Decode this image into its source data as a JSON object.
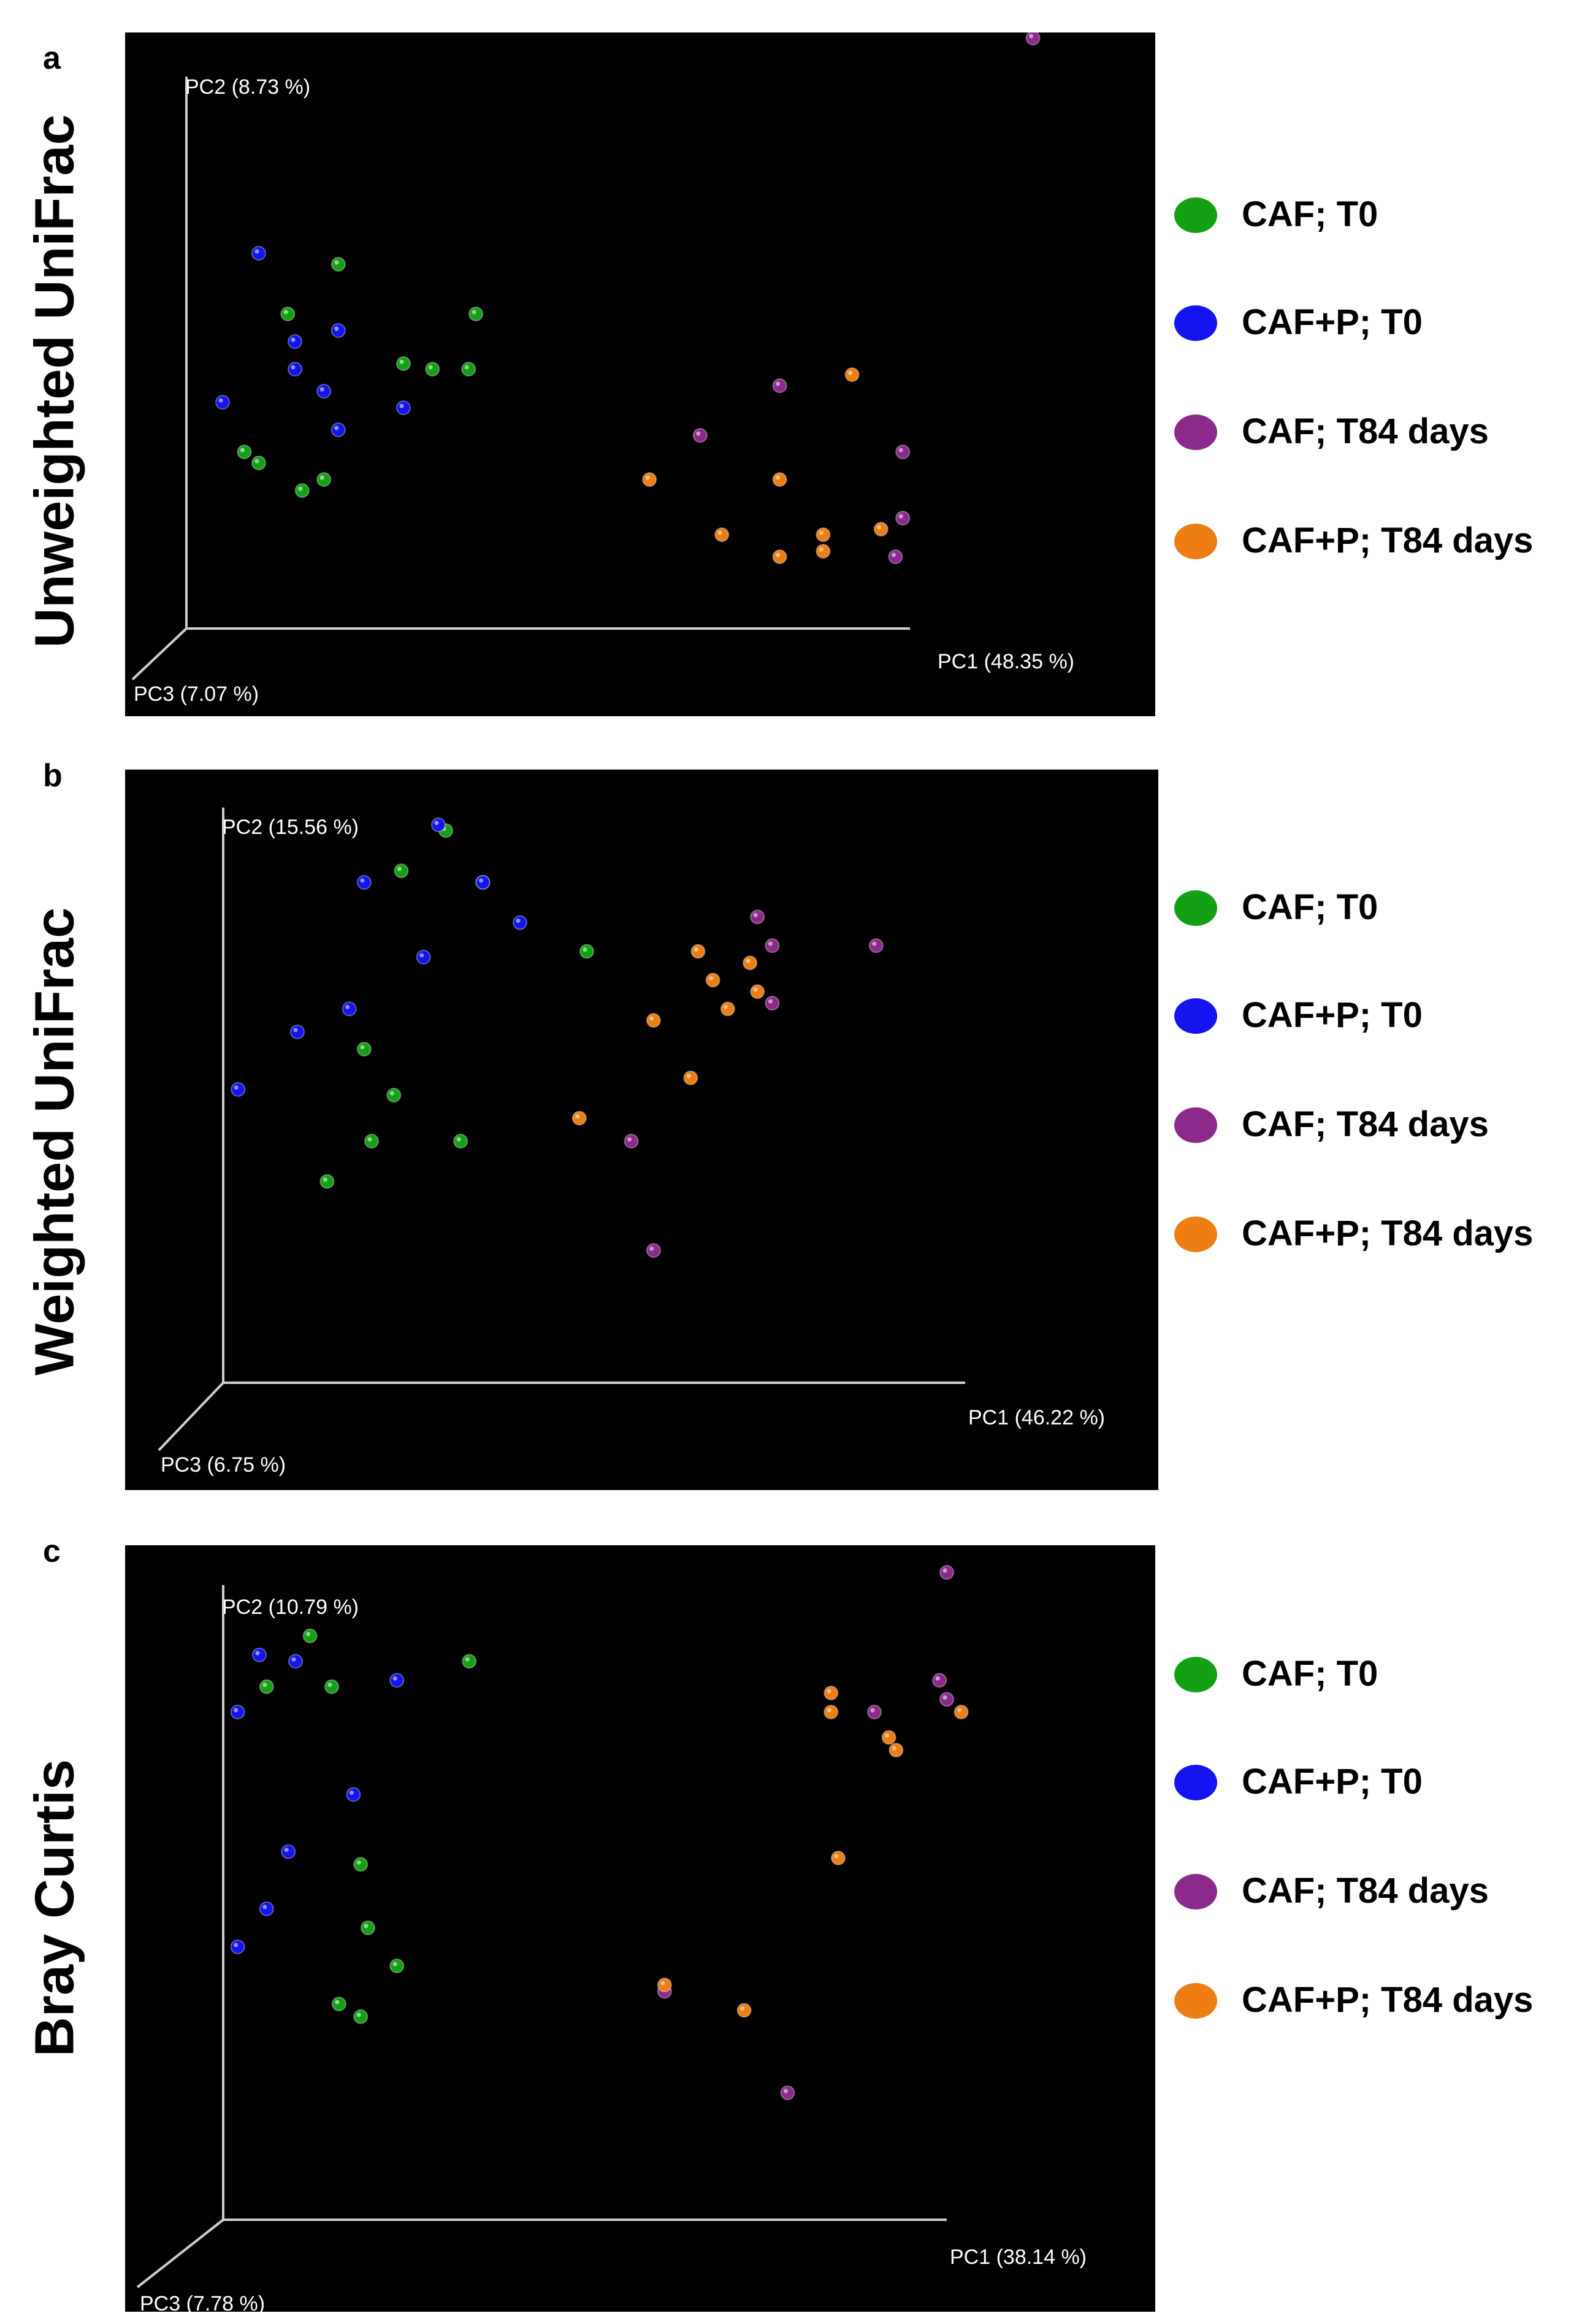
{
  "colors": {
    "caf_t0": "#14a014",
    "cafp_t0": "#1414f0",
    "caf_t84": "#8c2a8c",
    "cafp_t84": "#ee7d14",
    "axis": "#cfcfcf",
    "background": "#000000"
  },
  "legend_labels": [
    "CAF; T0",
    "CAF+P; T0",
    "CAF; T84 days",
    "CAF+P; T84 days"
  ],
  "chart_data": [
    {
      "type": "scatter",
      "panel": "a",
      "title": "Unweighted UniFrac",
      "axes": {
        "pc1": "PC1 (48.35 %)",
        "pc2": "PC2 (8.73 %)",
        "pc3": "PC3 (7.07 %)"
      },
      "series": [
        {
          "name": "CAF; T0",
          "key": "caf_t0",
          "points": [
            [
              0.08,
              0.32
            ],
            [
              0.19,
              0.27
            ],
            [
              0.14,
              0.57
            ],
            [
              0.21,
              0.66
            ],
            [
              0.16,
              0.25
            ],
            [
              0.1,
              0.3
            ],
            [
              0.3,
              0.48
            ],
            [
              0.34,
              0.47
            ],
            [
              0.39,
              0.47
            ],
            [
              0.4,
              0.57
            ]
          ]
        },
        {
          "name": "CAF+P; T0",
          "key": "cafp_t0",
          "points": [
            [
              0.1,
              0.68
            ],
            [
              0.05,
              0.41
            ],
            [
              0.15,
              0.52
            ],
            [
              0.15,
              0.47
            ],
            [
              0.19,
              0.43
            ],
            [
              0.21,
              0.54
            ],
            [
              0.3,
              0.4
            ],
            [
              0.21,
              0.36
            ]
          ]
        },
        {
          "name": "CAF; T84 days",
          "key": "caf_t84",
          "points": [
            [
              1.17,
              1.07
            ],
            [
              0.82,
              0.44
            ],
            [
              0.71,
              0.35
            ],
            [
              0.99,
              0.32
            ],
            [
              0.99,
              0.2
            ],
            [
              0.98,
              0.13
            ]
          ]
        },
        {
          "name": "CAF+P; T84 days",
          "key": "cafp_t84",
          "points": [
            [
              0.64,
              0.27
            ],
            [
              0.74,
              0.17
            ],
            [
              0.82,
              0.27
            ],
            [
              0.82,
              0.13
            ],
            [
              0.92,
              0.46
            ],
            [
              0.88,
              0.17
            ],
            [
              0.88,
              0.14
            ],
            [
              0.96,
              0.18
            ]
          ]
        }
      ]
    },
    {
      "type": "scatter",
      "panel": "b",
      "title": "Weighted UniFrac",
      "axes": {
        "pc1": "PC1 (46.22 %)",
        "pc2": "PC2 (15.56 %)",
        "pc3": "PC3 (6.75 %)"
      },
      "series": [
        {
          "name": "CAF; T0",
          "key": "caf_t0",
          "points": [
            [
              0.3,
              0.96
            ],
            [
              0.24,
              0.89
            ],
            [
              0.35,
              0.87
            ],
            [
              0.49,
              0.75
            ],
            [
              0.19,
              0.58
            ],
            [
              0.23,
              0.5
            ],
            [
              0.2,
              0.42
            ],
            [
              0.32,
              0.42
            ],
            [
              0.14,
              0.35
            ]
          ]
        },
        {
          "name": "CAF+P; T0",
          "key": "cafp_t0",
          "points": [
            [
              0.29,
              0.97
            ],
            [
              0.19,
              0.87
            ],
            [
              0.35,
              0.87
            ],
            [
              0.4,
              0.8
            ],
            [
              0.27,
              0.74
            ],
            [
              0.17,
              0.65
            ],
            [
              0.1,
              0.61
            ],
            [
              0.02,
              0.51
            ]
          ]
        },
        {
          "name": "CAF; T84 days",
          "key": "caf_t84",
          "points": [
            [
              0.72,
              0.81
            ],
            [
              0.74,
              0.76
            ],
            [
              0.74,
              0.66
            ],
            [
              0.88,
              0.76
            ],
            [
              0.55,
              0.42
            ],
            [
              0.58,
              0.23
            ]
          ]
        },
        {
          "name": "CAF+P; T84 days",
          "key": "cafp_t84",
          "points": [
            [
              0.64,
              0.75
            ],
            [
              0.66,
              0.7
            ],
            [
              0.71,
              0.73
            ],
            [
              0.72,
              0.68
            ],
            [
              0.68,
              0.65
            ],
            [
              0.58,
              0.63
            ],
            [
              0.63,
              0.53
            ],
            [
              0.48,
              0.46
            ]
          ]
        }
      ]
    },
    {
      "type": "scatter",
      "panel": "c",
      "title": "Bray Curtis",
      "axes": {
        "pc1": "PC1 (38.14 %)",
        "pc2": "PC2 (10.79 %)",
        "pc3": "PC3 (7.78 %)"
      },
      "series": [
        {
          "name": "CAF; T0",
          "key": "caf_t0",
          "points": [
            [
              0.12,
              0.92
            ],
            [
              0.06,
              0.84
            ],
            [
              0.15,
              0.84
            ],
            [
              0.34,
              0.88
            ],
            [
              0.19,
              0.56
            ],
            [
              0.2,
              0.46
            ],
            [
              0.24,
              0.4
            ],
            [
              0.16,
              0.34
            ],
            [
              0.19,
              0.32
            ]
          ]
        },
        {
          "name": "CAF+P; T0",
          "key": "cafp_t0",
          "points": [
            [
              0.05,
              0.89
            ],
            [
              0.1,
              0.88
            ],
            [
              0.24,
              0.85
            ],
            [
              0.02,
              0.8
            ],
            [
              0.18,
              0.67
            ],
            [
              0.09,
              0.58
            ],
            [
              0.06,
              0.49
            ],
            [
              0.02,
              0.43
            ]
          ]
        },
        {
          "name": "CAF; T84 days",
          "key": "caf_t84",
          "points": [
            [
              1.0,
              1.02
            ],
            [
              0.99,
              0.85
            ],
            [
              1.0,
              0.82
            ],
            [
              0.9,
              0.8
            ],
            [
              0.61,
              0.36
            ],
            [
              0.78,
              0.2
            ]
          ]
        },
        {
          "name": "CAF+P; T84 days",
          "key": "cafp_t84",
          "points": [
            [
              0.84,
              0.83
            ],
            [
              0.84,
              0.8
            ],
            [
              1.02,
              0.8
            ],
            [
              0.92,
              0.76
            ],
            [
              0.93,
              0.74
            ],
            [
              0.85,
              0.57
            ],
            [
              0.61,
              0.37
            ],
            [
              0.72,
              0.33
            ]
          ]
        }
      ]
    }
  ]
}
